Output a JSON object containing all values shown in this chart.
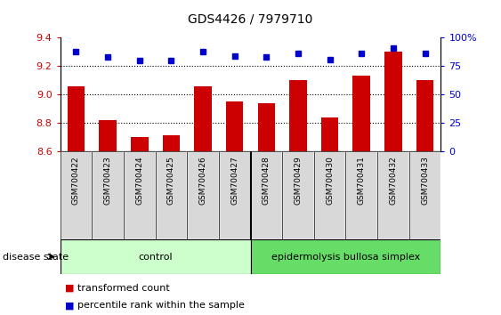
{
  "title": "GDS4426 / 7979710",
  "samples": [
    "GSM700422",
    "GSM700423",
    "GSM700424",
    "GSM700425",
    "GSM700426",
    "GSM700427",
    "GSM700428",
    "GSM700429",
    "GSM700430",
    "GSM700431",
    "GSM700432",
    "GSM700433"
  ],
  "bar_values": [
    9.06,
    8.82,
    8.7,
    8.71,
    9.06,
    8.95,
    8.94,
    9.1,
    8.84,
    9.13,
    9.3,
    9.1
  ],
  "percentile_values": [
    88,
    83,
    80,
    80,
    88,
    84,
    83,
    86,
    81,
    86,
    91,
    86
  ],
  "bar_bottom": 8.6,
  "ylim_left": [
    8.6,
    9.4
  ],
  "ylim_right": [
    0,
    100
  ],
  "yticks_left": [
    8.6,
    8.8,
    9.0,
    9.2,
    9.4
  ],
  "yticks_right": [
    0,
    25,
    50,
    75,
    100
  ],
  "bar_color": "#cc0000",
  "dot_color": "#0000cc",
  "control_color": "#ccffcc",
  "disease_color": "#66dd66",
  "tick_label_color_left": "#cc0000",
  "tick_label_color_right": "#0000cc",
  "n_control": 6,
  "n_disease": 6,
  "control_label": "control",
  "disease_label": "epidermolysis bullosa simplex",
  "legend_bar_label": "transformed count",
  "legend_dot_label": "percentile rank within the sample",
  "disease_state_label": "disease state",
  "sample_box_color": "#d8d8d8",
  "plot_bg_color": "#ffffff",
  "grid_dotted_color": "#000000",
  "grid_dotted_ticks": [
    8.8,
    9.0,
    9.2
  ]
}
